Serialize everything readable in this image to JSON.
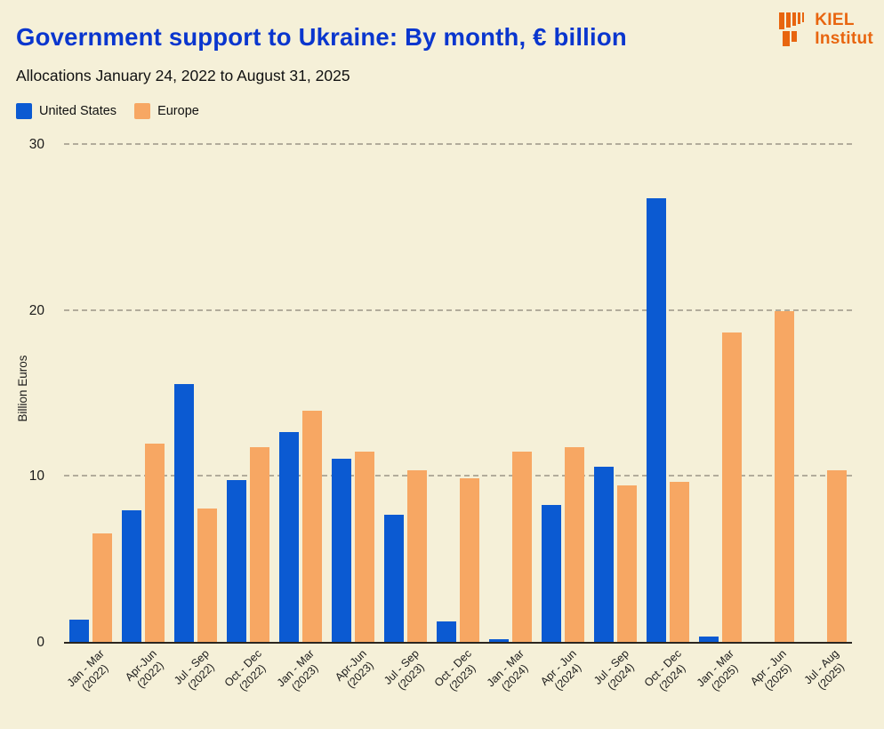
{
  "page": {
    "background": "#F5F0D8"
  },
  "header": {
    "logo": {
      "line1": "KIEL",
      "line2": "Institut",
      "color": "#E8650F"
    }
  },
  "chart_data": {
    "type": "bar",
    "title": "Government support to Ukraine: By month, € billion",
    "subtitle": "Allocations January 24, 2022 to August 31, 2025",
    "title_color": "#0A36CE",
    "xlabel": "",
    "ylabel": "Billion Euros",
    "ylim": [
      0,
      30.7
    ],
    "yticks": [
      0,
      10,
      20,
      30
    ],
    "grid": "horizontal dashed",
    "legend_position": "top-left",
    "categories": [
      {
        "range": "Jan - Mar",
        "year": "(2022)"
      },
      {
        "range": "Apr-Jun",
        "year": "(2022)"
      },
      {
        "range": "Jul - Sep",
        "year": "(2022)"
      },
      {
        "range": "Oct - Dec",
        "year": "(2022)"
      },
      {
        "range": "Jan - Mar",
        "year": "(2023)"
      },
      {
        "range": "Apr-Jun",
        "year": "(2023)"
      },
      {
        "range": "Jul - Sep",
        "year": "(2023)"
      },
      {
        "range": "Oct - Dec",
        "year": "(2023)"
      },
      {
        "range": "Jan - Mar",
        "year": "(2024)"
      },
      {
        "range": "Apr - Jun",
        "year": "(2024)"
      },
      {
        "range": "Jul - Sep",
        "year": "(2024)"
      },
      {
        "range": "Oct - Dec",
        "year": "(2024)"
      },
      {
        "range": "Jan - Mar",
        "year": "(2025)"
      },
      {
        "range": "Apr - Jun",
        "year": "(2025)"
      },
      {
        "range": "Jul - Aug",
        "year": "(2025)"
      }
    ],
    "series": [
      {
        "name": "United States",
        "color": "#0B5AD2",
        "values": [
          1.4,
          8.0,
          15.6,
          9.8,
          12.7,
          11.1,
          7.7,
          1.3,
          0.2,
          8.3,
          10.6,
          26.8,
          0.4,
          0,
          0
        ]
      },
      {
        "name": "Europe",
        "color": "#F7A763",
        "values": [
          6.6,
          12.0,
          8.1,
          11.8,
          14.0,
          11.5,
          10.4,
          9.9,
          11.5,
          11.8,
          9.5,
          9.7,
          18.7,
          20.0,
          10.4
        ]
      }
    ],
    "axis_color": "#2B2620",
    "gridline_color": "#B2AC9B"
  }
}
